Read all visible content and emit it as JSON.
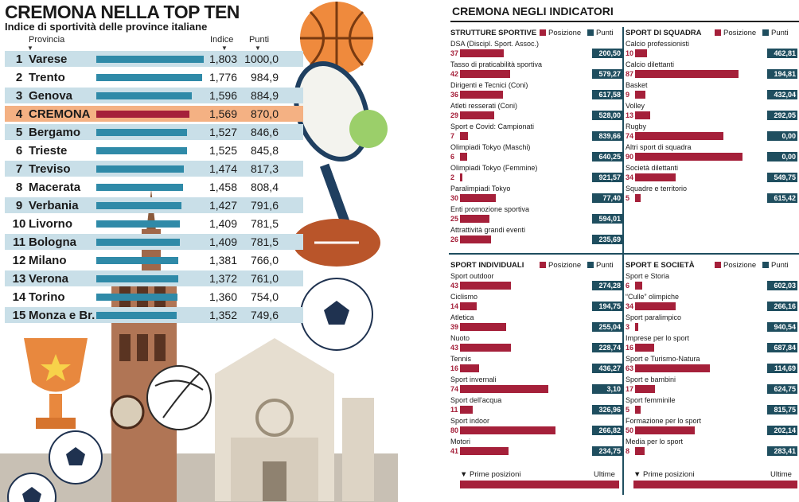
{
  "left": {
    "title": "CREMONA NELLA TOP TEN",
    "subtitle": "Indice di sportività delle province italiane",
    "col_provincia": "Provincia",
    "col_indice": "Indice",
    "col_punti": "Punti",
    "arrow": "▼"
  },
  "chart_data": [
    {
      "type": "bar",
      "title": "CREMONA NELLA TOP TEN",
      "subtitle": "Indice di sportività delle province italiane",
      "categories": [
        "Varese",
        "Trento",
        "Genova",
        "CREMONA",
        "Bergamo",
        "Trieste",
        "Treviso",
        "Macerata",
        "Verbania",
        "Livorno",
        "Bologna",
        "Milano",
        "Verona",
        "Torino",
        "Monza e Br."
      ],
      "ranks": [
        "1",
        "2",
        "3",
        "4",
        "5",
        "6",
        "7",
        "8",
        "9",
        "10",
        "11",
        "12",
        "13",
        "14",
        "15"
      ],
      "series": [
        {
          "name": "Indice",
          "values": [
            1.803,
            1.776,
            1.596,
            1.569,
            1.527,
            1.525,
            1.474,
            1.458,
            1.427,
            1.409,
            1.409,
            1.381,
            1.372,
            1.36,
            1.352
          ],
          "labels": [
            "1,803",
            "1,776",
            "1,596",
            "1,569",
            "1,527",
            "1,525",
            "1,474",
            "1,458",
            "1,427",
            "1,409",
            "1,409",
            "1,381",
            "1,372",
            "1,360",
            "1,352"
          ]
        },
        {
          "name": "Punti",
          "values": [
            1000.0,
            984.9,
            884.9,
            870.0,
            846.6,
            845.8,
            817.3,
            808.4,
            791.6,
            781.5,
            781.5,
            766.0,
            761.0,
            754.0,
            749.6
          ],
          "labels": [
            "1000,0",
            "984,9",
            "884,9",
            "870,0",
            "846,6",
            "845,8",
            "817,3",
            "808,4",
            "791,6",
            "781,5",
            "781,5",
            "766,0",
            "761,0",
            "754,0",
            "749,6"
          ]
        }
      ],
      "highlight": "CREMONA",
      "colors": {
        "bar": "#2f8aa8",
        "highlight_bar": "#a5203a",
        "highlight_row": "#f4b183",
        "stripe": "#c9dfe8"
      }
    },
    {
      "type": "bar",
      "title": "CREMONA NEGLI INDICATORI",
      "legend": {
        "pos": "Posizione",
        "pts": "Punti"
      },
      "footer": {
        "left": "Prime posizioni",
        "right": "Ultime"
      },
      "position_range": [
        1,
        107
      ],
      "panels": [
        {
          "heading": "STRUTTURE SPORTIVE",
          "items": [
            {
              "label": "DSA (Discipl. Sport. Assoc.)",
              "pos": 37,
              "pts": "200,50"
            },
            {
              "label": "Tasso di praticabilità sportiva",
              "pos": 42,
              "pts": "579,27"
            },
            {
              "label": "Dirigenti e Tecnici (Coni)",
              "pos": 36,
              "pts": "617,58"
            },
            {
              "label": "Atleti resserati (Coni)",
              "pos": 29,
              "pts": "528,00"
            },
            {
              "label": "Sport e Covid: Campionati",
              "pos": 7,
              "pts": "839,66"
            },
            {
              "label": "Olimpiadi Tokyo (Maschi)",
              "pos": 6,
              "pts": "640,25"
            },
            {
              "label": "Olimpiadi Tokyo (Femmine)",
              "pos": 2,
              "pts": "921,57"
            },
            {
              "label": "Paralimpiadi Tokyo",
              "pos": 30,
              "pts": "77,40"
            },
            {
              "label": "Enti promozione sportiva",
              "pos": 25,
              "pts": "594,01"
            },
            {
              "label": "Attrattività grandi eventi",
              "pos": 26,
              "pts": "235,69"
            }
          ]
        },
        {
          "heading": "SPORT DI SQUADRA",
          "items": [
            {
              "label": "Calcio professionisti",
              "pos": 10,
              "pts": "462,81"
            },
            {
              "label": "Calcio dilettanti",
              "pos": 87,
              "pts": "194,81"
            },
            {
              "label": "Basket",
              "pos": 9,
              "pts": "432,04"
            },
            {
              "label": "Volley",
              "pos": 13,
              "pts": "292,05"
            },
            {
              "label": "Rugby",
              "pos": 74,
              "pts": "0,00"
            },
            {
              "label": "Altri sport di squadra",
              "pos": 90,
              "pts": "0,00"
            },
            {
              "label": "Società dilettanti",
              "pos": 34,
              "pts": "549,75"
            },
            {
              "label": "Squadre e territorio",
              "pos": 5,
              "pts": "615,42"
            }
          ]
        },
        {
          "heading": "SPORT INDIVIDUALI",
          "items": [
            {
              "label": "Sport outdoor",
              "pos": 43,
              "pts": "274,28"
            },
            {
              "label": "Ciclismo",
              "pos": 14,
              "pts": "194,75"
            },
            {
              "label": "Atletica",
              "pos": 39,
              "pts": "255,04"
            },
            {
              "label": "Nuoto",
              "pos": 43,
              "pts": "228,74"
            },
            {
              "label": "Tennis",
              "pos": 16,
              "pts": "436,27"
            },
            {
              "label": "Sport invernali",
              "pos": 74,
              "pts": "3,10"
            },
            {
              "label": "Sport dell'acqua",
              "pos": 11,
              "pts": "326,96"
            },
            {
              "label": "Sport indoor",
              "pos": 80,
              "pts": "266,82"
            },
            {
              "label": "Motori",
              "pos": 41,
              "pts": "234,75"
            }
          ]
        },
        {
          "heading": "SPORT E SOCIETÀ",
          "items": [
            {
              "label": "Sport e Storia",
              "pos": 6,
              "pts": "602,03"
            },
            {
              "label": "“Culle” olimpiche",
              "pos": 34,
              "pts": "266,16"
            },
            {
              "label": "Sport paralimpico",
              "pos": 3,
              "pts": "940,54"
            },
            {
              "label": "Imprese per lo sport",
              "pos": 16,
              "pts": "687,84"
            },
            {
              "label": "Sport e Turismo-Natura",
              "pos": 63,
              "pts": "114,69"
            },
            {
              "label": "Sport e bambini",
              "pos": 17,
              "pts": "624,75"
            },
            {
              "label": "Sport femminile",
              "pos": 5,
              "pts": "815,75"
            },
            {
              "label": "Formazione per lo sport",
              "pos": 50,
              "pts": "202,14"
            },
            {
              "label": "Media per lo sport",
              "pos": 8,
              "pts": "283,41"
            }
          ]
        }
      ]
    }
  ]
}
